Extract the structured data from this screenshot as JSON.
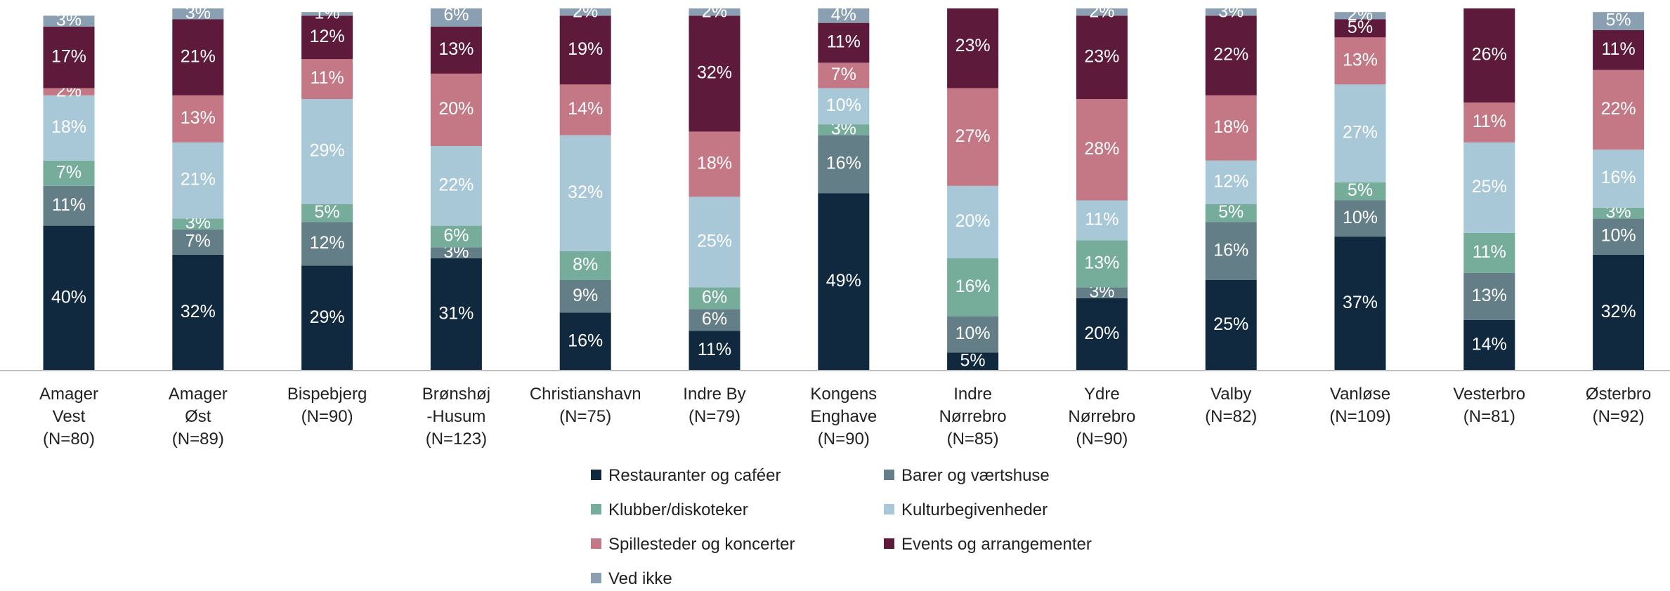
{
  "chart_data": {
    "type": "stacked_bar",
    "categories": [
      "Amager\nVest\n(N=80)",
      "Amager\nØst\n(N=89)",
      "Bispebjerg\n(N=90)",
      "Brønshøj\n-Husum\n(N=123)",
      "Christianshavn\n(N=75)",
      "Indre By\n(N=79)",
      "Kongens\nEnghave\n(N=90)",
      "Indre\nNørrebro\n(N=85)",
      "Ydre\nNørrebro\n(N=90)",
      "Valby\n(N=82)",
      "Vanløse\n(N=109)",
      "Vesterbro\n(N=81)",
      "Østerbro\n(N=92)"
    ],
    "ylim": [
      0,
      100
    ],
    "series": [
      {
        "name": "Restauranter og caféer",
        "color": "#10293f",
        "values": [
          40,
          32,
          29,
          31,
          16,
          11,
          49,
          5,
          20,
          25,
          37,
          14,
          32
        ],
        "value_labels": [
          "40%",
          "32%",
          "29%",
          "31%",
          "16%",
          "11%",
          "49%",
          "5%",
          "20%",
          "25%",
          "37%",
          "14%",
          "32%"
        ]
      },
      {
        "name": "Barer og værtshuse",
        "color": "#647e87",
        "values": [
          11,
          7,
          12,
          3,
          9,
          6,
          16,
          10,
          3,
          16,
          10,
          13,
          10
        ],
        "value_labels": [
          "11%",
          "7%",
          "12%",
          "3%",
          "9%",
          "6%",
          "16%",
          "10%",
          "3%",
          "16%",
          "10%",
          "13%",
          "10%"
        ]
      },
      {
        "name": "Klubber/diskoteker",
        "color": "#76ad9a",
        "values": [
          7,
          3,
          5,
          6,
          8,
          6,
          3,
          16,
          13,
          5,
          5,
          11,
          3
        ],
        "value_labels": [
          "7%",
          "3%",
          "5%",
          "6%",
          "8%",
          "6%",
          "3%",
          "16%",
          "13%",
          "5%",
          "5%",
          "11%",
          "3%"
        ]
      },
      {
        "name": "Kulturbegivenheder",
        "color": "#a8c8d8",
        "values": [
          18,
          21,
          29,
          22,
          32,
          25,
          10,
          20,
          11,
          12,
          27,
          25,
          16
        ],
        "value_labels": [
          "18%",
          "21%",
          "29%",
          "22%",
          "32%",
          "25%",
          "10%",
          "20%",
          "11%",
          "12%",
          "27%",
          "25%",
          "16%"
        ]
      },
      {
        "name": "Spillesteder og koncerter",
        "color": "#c47886",
        "values": [
          2,
          13,
          11,
          20,
          14,
          18,
          7,
          27,
          28,
          18,
          13,
          11,
          22
        ],
        "value_labels": [
          "2%",
          "13%",
          "11%",
          "20%",
          "14%",
          "18%",
          "7%",
          "27%",
          "28%",
          "18%",
          "13%",
          "11%",
          "22%"
        ]
      },
      {
        "name": "Events og arrangementer",
        "color": "#5e1a3a",
        "values": [
          17,
          21,
          12,
          13,
          19,
          32,
          11,
          23,
          23,
          22,
          5,
          26,
          11
        ],
        "value_labels": [
          "17%",
          "21%",
          "12%",
          "13%",
          "19%",
          "32%",
          "11%",
          "23%",
          "23%",
          "22%",
          "5%",
          "26%",
          "11%"
        ]
      },
      {
        "name": "Ved ikke",
        "color": "#8b9fb3",
        "values": [
          3,
          3,
          1,
          6,
          2,
          2,
          4,
          null,
          2,
          3,
          2,
          null,
          5
        ],
        "value_labels": [
          "3%",
          "3%",
          "1%",
          "6%",
          "2%",
          "2%",
          "4%",
          null,
          "2%",
          "3%",
          "2%",
          null,
          "5%"
        ]
      }
    ]
  }
}
